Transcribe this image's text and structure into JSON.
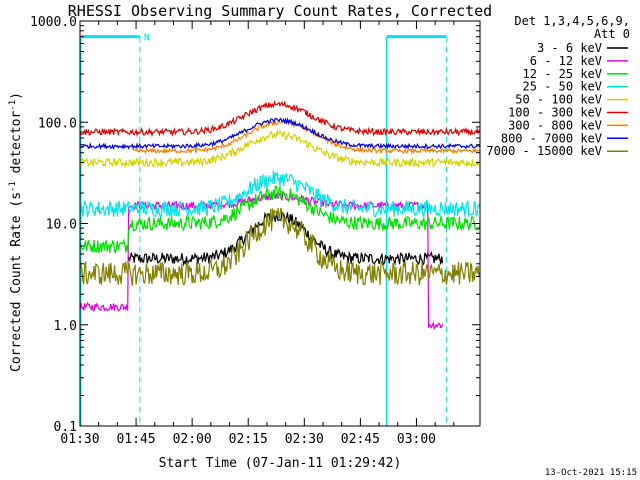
{
  "chart_data": {
    "type": "line",
    "title": "RHESSI Observing Summary Count Rates, Corrected",
    "xlabel": "Start Time (07-Jan-11 01:29:42)",
    "ylabel_parts": [
      "Corrected Count Rate (s",
      "-1",
      " detector",
      "-1",
      ")"
    ],
    "yscale": "log",
    "ylim": [
      0.1,
      1000
    ],
    "xlim_minutes": [
      0,
      107
    ],
    "x_ticks": [
      {
        "label": "01:30",
        "minute": 0
      },
      {
        "label": "01:45",
        "minute": 15
      },
      {
        "label": "02:00",
        "minute": 30
      },
      {
        "label": "02:15",
        "minute": 45
      },
      {
        "label": "02:30",
        "minute": 60
      },
      {
        "label": "02:45",
        "minute": 75
      },
      {
        "label": "03:00",
        "minute": 90
      }
    ],
    "y_ticks": [
      {
        "label": "1000.0",
        "value": 1000
      },
      {
        "label": "100.0",
        "value": 100
      },
      {
        "label": "10.0",
        "value": 10
      },
      {
        "label": "1.0",
        "value": 1
      },
      {
        "label": "0.1",
        "value": 0.1
      }
    ],
    "legend_header": [
      "Det 1,3,4,5,6,9,",
      "Att 0"
    ],
    "legend_position": "right",
    "night_bar_label": "N",
    "night_intervals_minutes": [
      [
        0,
        16
      ],
      [
        82,
        98
      ]
    ],
    "dashed_markers_minutes": [
      16,
      82,
      98
    ],
    "series": [
      {
        "name": "3 - 6 keV",
        "color": "#000000",
        "base": 4.5,
        "peak": 12,
        "center": 53,
        "width": 9,
        "noise": 0.06,
        "start": 13,
        "end": 97
      },
      {
        "name": "6 - 12 keV",
        "color": "#e000e0",
        "base": 15,
        "peak": 18.5,
        "center": 53,
        "width": 10,
        "noise": 0.04,
        "start": 0,
        "end": 97,
        "early": 1.5,
        "late": 1.0
      },
      {
        "name": "12 - 25 keV",
        "color": "#00e000",
        "base": 10,
        "peak": 20,
        "center": 53,
        "width": 10,
        "noise": 0.07,
        "start": 0,
        "end": 107,
        "early": 6
      },
      {
        "name": "25 - 50 keV",
        "color": "#00e6e6",
        "base": 14,
        "peak": 28,
        "center": 53,
        "width": 10,
        "noise": 0.08,
        "start": 0,
        "end": 107
      },
      {
        "name": "50 - 100 keV",
        "color": "#d2d200",
        "base": 40,
        "peak": 75,
        "center": 53,
        "width": 11,
        "noise": 0.04,
        "start": 0,
        "end": 107
      },
      {
        "name": "100 - 300 keV",
        "color": "#e00000",
        "base": 80,
        "peak": 150,
        "center": 53,
        "width": 11,
        "noise": 0.03,
        "start": 0,
        "end": 107
      },
      {
        "name": "300 - 800 keV",
        "color": "#ff8000",
        "base": 52,
        "peak": 100,
        "center": 54,
        "width": 11,
        "noise": 0.02,
        "start": 14,
        "end": 107
      },
      {
        "name": "800 - 7000 keV",
        "color": "#0000e0",
        "base": 58,
        "peak": 105,
        "center": 53,
        "width": 11,
        "noise": 0.02,
        "start": 0,
        "end": 107
      },
      {
        "name": "7000 - 15000 keV",
        "color": "#808000",
        "base": 3.2,
        "peak": 11,
        "center": 53,
        "width": 9,
        "noise": 0.12,
        "start": 0,
        "end": 107
      }
    ]
  },
  "footer_timestamp": "13-Oct-2021 15:15"
}
